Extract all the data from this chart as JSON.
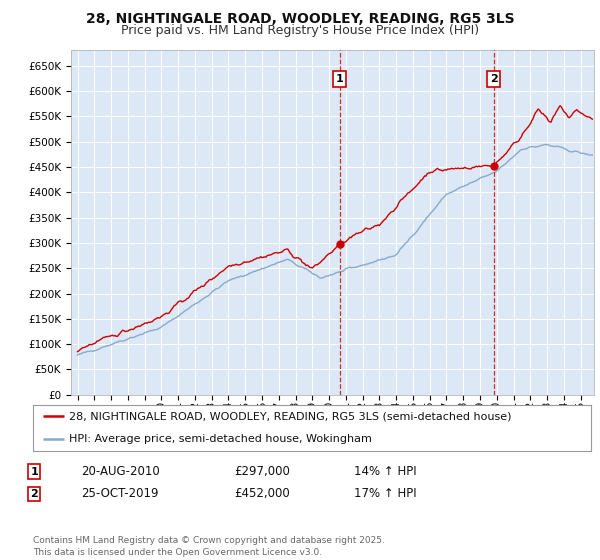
{
  "title": "28, NIGHTINGALE ROAD, WOODLEY, READING, RG5 3LS",
  "subtitle": "Price paid vs. HM Land Registry's House Price Index (HPI)",
  "ylim": [
    0,
    680000
  ],
  "yticks": [
    0,
    50000,
    100000,
    150000,
    200000,
    250000,
    300000,
    350000,
    400000,
    450000,
    500000,
    550000,
    600000,
    650000
  ],
  "xlim_start": 1994.6,
  "xlim_end": 2025.8,
  "xticks": [
    1995,
    1996,
    1997,
    1998,
    1999,
    2000,
    2001,
    2002,
    2003,
    2004,
    2005,
    2006,
    2007,
    2008,
    2009,
    2010,
    2011,
    2012,
    2013,
    2014,
    2015,
    2016,
    2017,
    2018,
    2019,
    2020,
    2021,
    2022,
    2023,
    2024,
    2025
  ],
  "fig_bg_color": "#ffffff",
  "plot_bg_color": "#dce8f5",
  "grid_color": "#ffffff",
  "line1_color": "#cc0000",
  "line2_color": "#88aacc",
  "transaction1_x": 2010.64,
  "transaction1_y": 297000,
  "transaction2_x": 2019.81,
  "transaction2_y": 452000,
  "legend_line1": "28, NIGHTINGALE ROAD, WOODLEY, READING, RG5 3LS (semi-detached house)",
  "legend_line2": "HPI: Average price, semi-detached house, Wokingham",
  "table_data": [
    [
      "1",
      "20-AUG-2010",
      "£297,000",
      "14% ↑ HPI"
    ],
    [
      "2",
      "25-OCT-2019",
      "£452,000",
      "17% ↑ HPI"
    ]
  ],
  "footer": "Contains HM Land Registry data © Crown copyright and database right 2025.\nThis data is licensed under the Open Government Licence v3.0.",
  "title_fontsize": 10,
  "subtitle_fontsize": 9,
  "tick_fontsize": 7.5,
  "legend_fontsize": 8
}
